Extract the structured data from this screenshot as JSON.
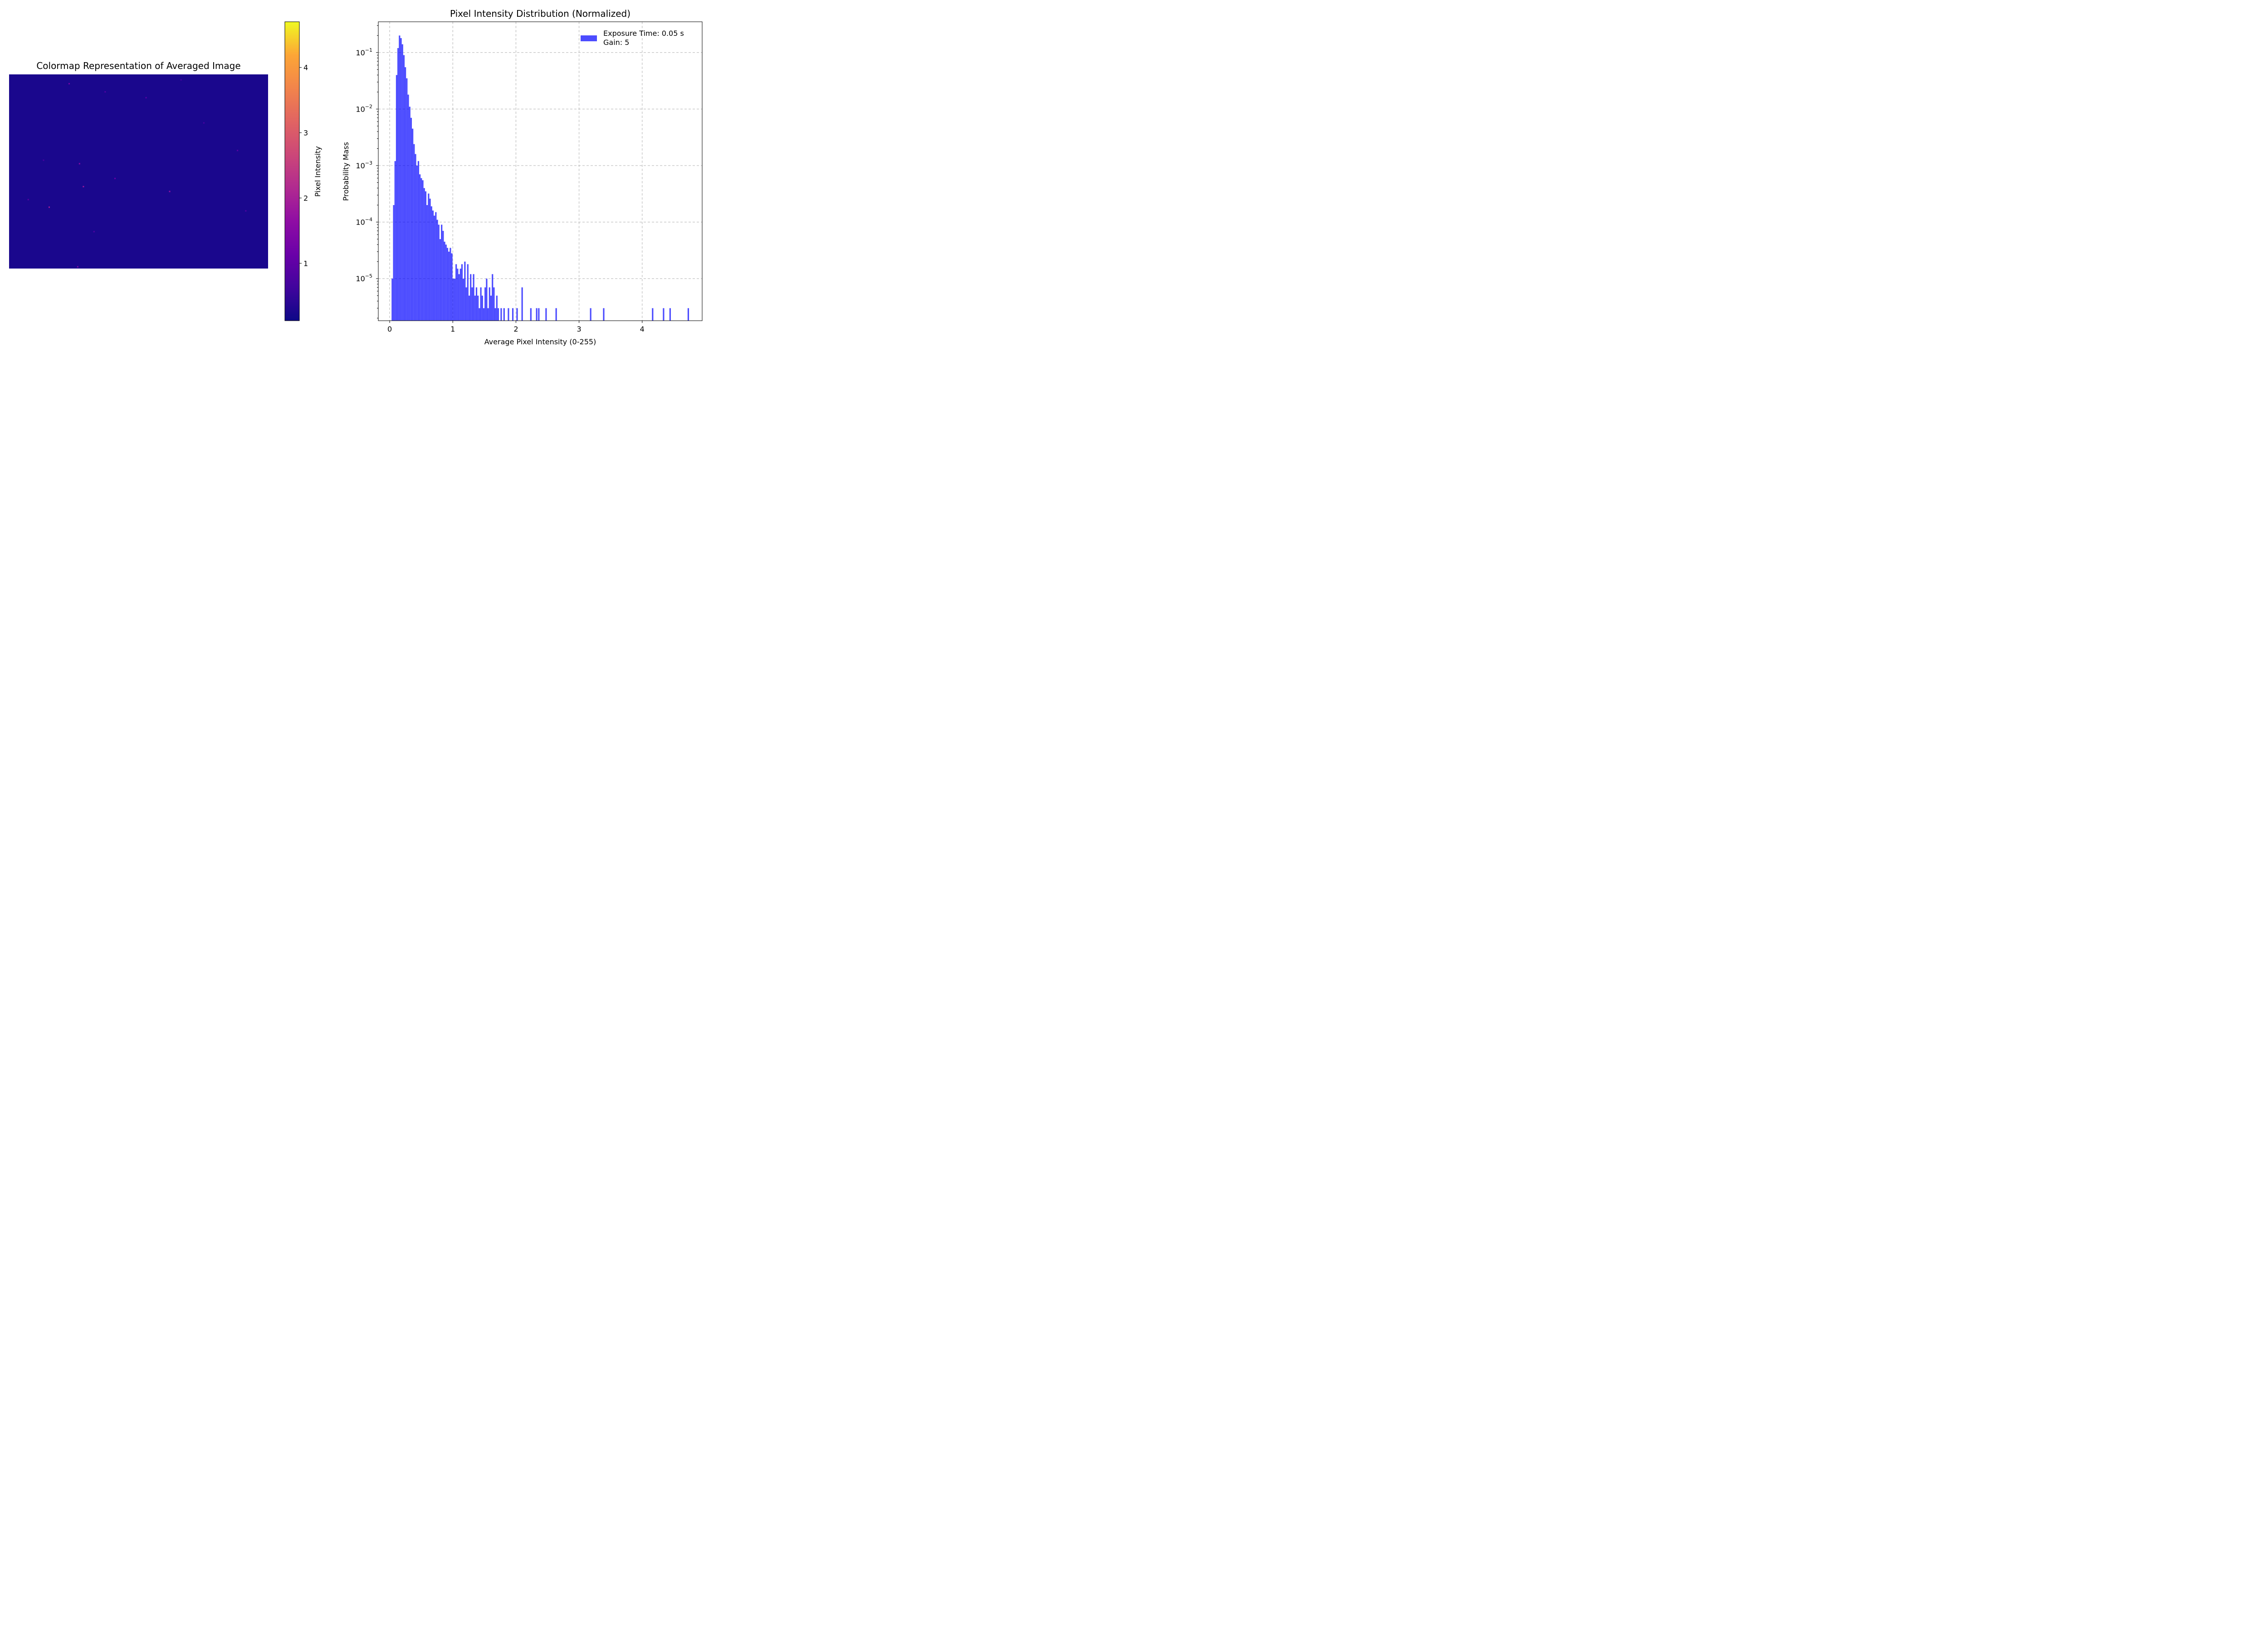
{
  "chart_data": [
    {
      "type": "heatmap",
      "title": "Colormap Representation of Averaged Image",
      "colormap": "plasma",
      "background_value": 0.25,
      "hot_pixels": [
        {
          "col": 0.232,
          "row": 0.048,
          "value": 1.3
        },
        {
          "col": 0.272,
          "row": 0.46,
          "value": 1.5
        },
        {
          "col": 0.287,
          "row": 0.578,
          "value": 1.8
        },
        {
          "col": 0.155,
          "row": 0.684,
          "value": 1.9
        },
        {
          "col": 0.62,
          "row": 0.603,
          "value": 1.7
        },
        {
          "col": 0.265,
          "row": 0.991,
          "value": 1.4
        },
        {
          "col": 0.409,
          "row": 0.536,
          "value": 1.1
        },
        {
          "col": 0.074,
          "row": 0.645,
          "value": 0.9
        },
        {
          "col": 0.529,
          "row": 0.12,
          "value": 0.9
        },
        {
          "col": 0.882,
          "row": 0.392,
          "value": 0.9
        },
        {
          "col": 0.371,
          "row": 0.09,
          "value": 0.8
        },
        {
          "col": 0.914,
          "row": 0.703,
          "value": 0.8
        },
        {
          "col": 0.664,
          "row": 0.028,
          "value": 0.7
        },
        {
          "col": 0.328,
          "row": 0.81,
          "value": 0.8
        },
        {
          "col": 0.133,
          "row": 0.442,
          "value": 0.7
        },
        {
          "col": 0.752,
          "row": 0.25,
          "value": 0.7
        }
      ],
      "colorbar": {
        "label": "Pixel Intensity",
        "range": [
          0.12,
          4.7
        ],
        "ticks": [
          1,
          2,
          3,
          4
        ]
      }
    },
    {
      "type": "bar",
      "title": "Pixel Intensity Distribution (Normalized)",
      "xlabel": "Average Pixel Intensity (0-255)",
      "ylabel": "Probability Mass",
      "xlim": [
        -0.18,
        4.95
      ],
      "ylim": [
        1.8e-06,
        0.35
      ],
      "yscale": "log",
      "xticks": [
        0,
        1,
        2,
        3,
        4
      ],
      "yticks": [
        {
          "value": 1e-05,
          "base": "10",
          "exp": "−5"
        },
        {
          "value": 0.0001,
          "base": "10",
          "exp": "−4"
        },
        {
          "value": 0.001,
          "base": "10",
          "exp": "−3"
        },
        {
          "value": 0.01,
          "base": "10",
          "exp": "−2"
        },
        {
          "value": 0.1,
          "base": "10",
          "exp": "−1"
        }
      ],
      "grid": true,
      "legend_position": "top-right",
      "series": [
        {
          "name": "Exposure Time: 0.05 s\nGain: 5",
          "color": "#0000ff",
          "opacity": 0.7
        }
      ],
      "bin_width": 0.0229,
      "bins": [
        [
          0.03,
          1e-05
        ],
        [
          0.053,
          0.0002
        ],
        [
          0.076,
          0.0012
        ],
        [
          0.099,
          0.04
        ],
        [
          0.122,
          0.12
        ],
        [
          0.145,
          0.2
        ],
        [
          0.168,
          0.18
        ],
        [
          0.191,
          0.14
        ],
        [
          0.214,
          0.09
        ],
        [
          0.237,
          0.055
        ],
        [
          0.26,
          0.035
        ],
        [
          0.283,
          0.018
        ],
        [
          0.306,
          0.011
        ],
        [
          0.329,
          0.007
        ],
        [
          0.352,
          0.0045
        ],
        [
          0.375,
          0.0024
        ],
        [
          0.398,
          0.0016
        ],
        [
          0.421,
          0.001
        ],
        [
          0.444,
          0.0012
        ],
        [
          0.467,
          0.0007
        ],
        [
          0.49,
          0.0006
        ],
        [
          0.513,
          0.00055
        ],
        [
          0.536,
          0.0004
        ],
        [
          0.559,
          0.00035
        ],
        [
          0.582,
          0.0002
        ],
        [
          0.605,
          0.00032
        ],
        [
          0.628,
          0.00026
        ],
        [
          0.651,
          0.00019
        ],
        [
          0.674,
          0.00016
        ],
        [
          0.697,
          0.00013
        ],
        [
          0.72,
          0.00015
        ],
        [
          0.743,
          0.00011
        ],
        [
          0.766,
          9e-05
        ],
        [
          0.789,
          5e-05
        ],
        [
          0.812,
          9e-05
        ],
        [
          0.835,
          7e-05
        ],
        [
          0.858,
          4.5e-05
        ],
        [
          0.881,
          4e-05
        ],
        [
          0.904,
          3.5e-05
        ],
        [
          0.927,
          3e-05
        ],
        [
          0.95,
          3.5e-05
        ],
        [
          0.973,
          2.8e-05
        ],
        [
          0.996,
          1e-05
        ],
        [
          1.019,
          1e-05
        ],
        [
          1.042,
          1.8e-05
        ],
        [
          1.065,
          1.5e-05
        ],
        [
          1.088,
          1.2e-05
        ],
        [
          1.111,
          1.5e-05
        ],
        [
          1.134,
          1.8e-05
        ],
        [
          1.157,
          1e-05
        ],
        [
          1.18,
          2e-05
        ],
        [
          1.203,
          7e-06
        ],
        [
          1.226,
          1.8e-05
        ],
        [
          1.249,
          5e-06
        ],
        [
          1.272,
          1.2e-05
        ],
        [
          1.295,
          7e-06
        ],
        [
          1.318,
          1.2e-05
        ],
        [
          1.341,
          5e-06
        ],
        [
          1.364,
          7e-06
        ],
        [
          1.387,
          5e-06
        ],
        [
          1.41,
          3e-06
        ],
        [
          1.433,
          7e-06
        ],
        [
          1.456,
          5e-06
        ],
        [
          1.479,
          3e-06
        ],
        [
          1.502,
          7e-06
        ],
        [
          1.525,
          1e-05
        ],
        [
          1.548,
          3e-06
        ],
        [
          1.571,
          7e-06
        ],
        [
          1.594,
          5e-06
        ],
        [
          1.617,
          1.2e-05
        ],
        [
          1.64,
          7e-06
        ],
        [
          1.663,
          3e-06
        ],
        [
          1.686,
          5e-06
        ],
        [
          1.709,
          3e-06
        ],
        [
          1.755,
          3e-06
        ],
        [
          1.801,
          3e-06
        ],
        [
          1.87,
          3e-06
        ],
        [
          1.939,
          3e-06
        ],
        [
          2.007,
          3e-06
        ],
        [
          2.087,
          7e-06
        ],
        [
          2.225,
          3e-06
        ],
        [
          2.317,
          3e-06
        ],
        [
          2.351,
          3e-06
        ],
        [
          2.466,
          3e-06
        ],
        [
          2.626,
          3e-06
        ],
        [
          3.172,
          3e-06
        ],
        [
          3.379,
          3e-06
        ],
        [
          4.154,
          3e-06
        ],
        [
          4.327,
          3e-06
        ],
        [
          4.431,
          3e-06
        ],
        [
          4.719,
          3e-06
        ]
      ]
    }
  ]
}
